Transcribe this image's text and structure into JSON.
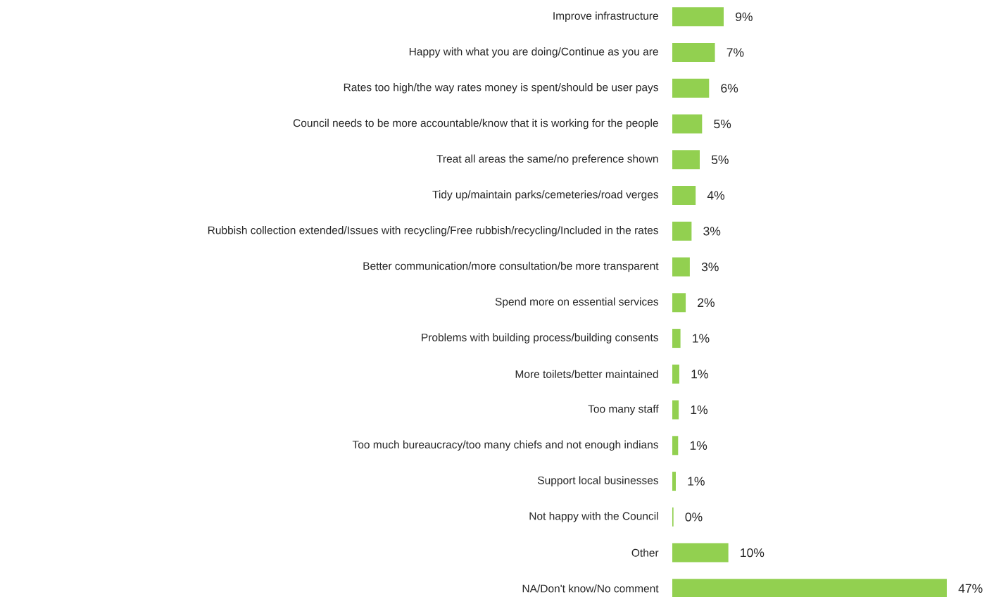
{
  "chart_data": {
    "type": "bar",
    "orientation": "horizontal",
    "color": "#92d050",
    "categories": [
      "Improve infrastructure",
      "Happy with what you are doing/Continue as you are",
      "Rates too high/the way rates money is spent/should be user pays",
      "Council needs to be more accountable/know that it is working for the people",
      "Treat all areas the same/no preference shown",
      "Tidy up/maintain parks/cemeteries/road verges",
      "Rubbish collection extended/Issues with recycling/Free rubbish/recycling/Included in the rates",
      "Better communication/more consultation/be more transparent",
      "Spend more on essential services",
      "Problems with building process/building consents",
      "More toilets/better maintained",
      "Too many staff",
      "Too much bureaucracy/too many chiefs and not enough indians",
      "Support local businesses",
      "Not happy with the Council",
      "Other",
      "NA/Don't know/No comment"
    ],
    "values": [
      8.8,
      7.3,
      6.3,
      5.1,
      4.7,
      4.0,
      3.3,
      3.0,
      2.3,
      1.4,
      1.2,
      1.1,
      1.0,
      0.6,
      0.2,
      9.6,
      47
    ],
    "value_labels": [
      "9%",
      "7%",
      "6%",
      "5%",
      "5%",
      "4%",
      "3%",
      "3%",
      "2%",
      "1%",
      "1%",
      "1%",
      "1%",
      "1%",
      "0%",
      "10%",
      "47%"
    ]
  }
}
